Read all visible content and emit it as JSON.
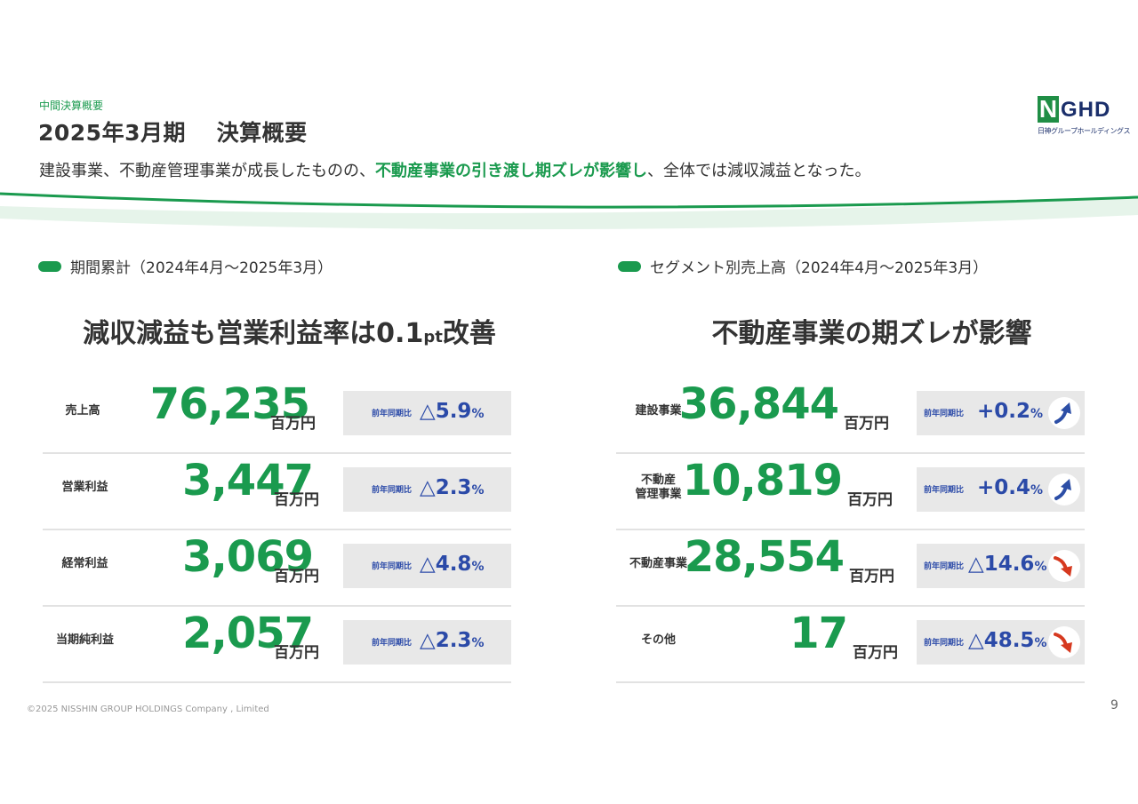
{
  "header": {
    "breadcrumb": "中間決算概要",
    "title": "2025年3月期　 決算概要",
    "lead_before": "建設事業、不動産管理事業が成長したものの、",
    "lead_highlight": "不動産事業の引き渡し期ズレが影響し",
    "lead_after": "、全体では減収減益となった。"
  },
  "logo": {
    "text": "GHD",
    "mark": "N",
    "subtitle": "日神グループホールディングス",
    "colors": {
      "green": "#1f8e45",
      "navy": "#1b2f6b"
    }
  },
  "left": {
    "section_label": "期間累計（2024年4月〜2025年3月）",
    "headline_a": "減収減益も営業利益率は0.1",
    "headline_small": "pt",
    "headline_b": "改善",
    "rows": [
      {
        "label": "売上高",
        "value": "76,235",
        "unit": "百万円",
        "yoy_label": "前年同期比",
        "change": "△5.9",
        "pct": "%"
      },
      {
        "label": "営業利益",
        "value": "3,447",
        "unit": "百万円",
        "yoy_label": "前年同期比",
        "change": "△2.3",
        "pct": "%"
      },
      {
        "label": "経常利益",
        "value": "3,069",
        "unit": "百万円",
        "yoy_label": "前年同期比",
        "change": "△4.8",
        "pct": "%"
      },
      {
        "label": "当期純利益",
        "value": "2,057",
        "unit": "百万円",
        "yoy_label": "前年同期比",
        "change": "△2.3",
        "pct": "%"
      }
    ]
  },
  "right": {
    "section_label": "セグメント別売上高（2024年4月〜2025年3月）",
    "headline": "不動産事業の期ズレが影響",
    "rows": [
      {
        "label": "建設事業",
        "label2": "",
        "value": "36,844",
        "unit": "百万円",
        "yoy_label": "前年同期比",
        "change": "+0.2",
        "pct": "%",
        "trend": "up"
      },
      {
        "label": "不動産",
        "label2": "管理事業",
        "value": "10,819",
        "unit": "百万円",
        "yoy_label": "前年同期比",
        "change": "+0.4",
        "pct": "%",
        "trend": "up"
      },
      {
        "label": "不動産事業",
        "label2": "",
        "value": "28,554",
        "unit": "百万円",
        "yoy_label": "前年同期比",
        "change": "△14.6",
        "pct": "%",
        "trend": "down"
      },
      {
        "label": "その他",
        "label2": "",
        "value": "17",
        "unit": "百万円",
        "yoy_label": "前年同期比",
        "change": "△48.5",
        "pct": "%",
        "trend": "down"
      }
    ]
  },
  "colors": {
    "accent_green": "#1a9a4e",
    "change_blue": "#2b4aa8",
    "up_arrow": "#2c4ea6",
    "down_arrow": "#d6391f"
  },
  "footer": {
    "copyright": "©2025 NISSHIN GROUP HOLDINGS Company , Limited",
    "page_number": "9"
  }
}
